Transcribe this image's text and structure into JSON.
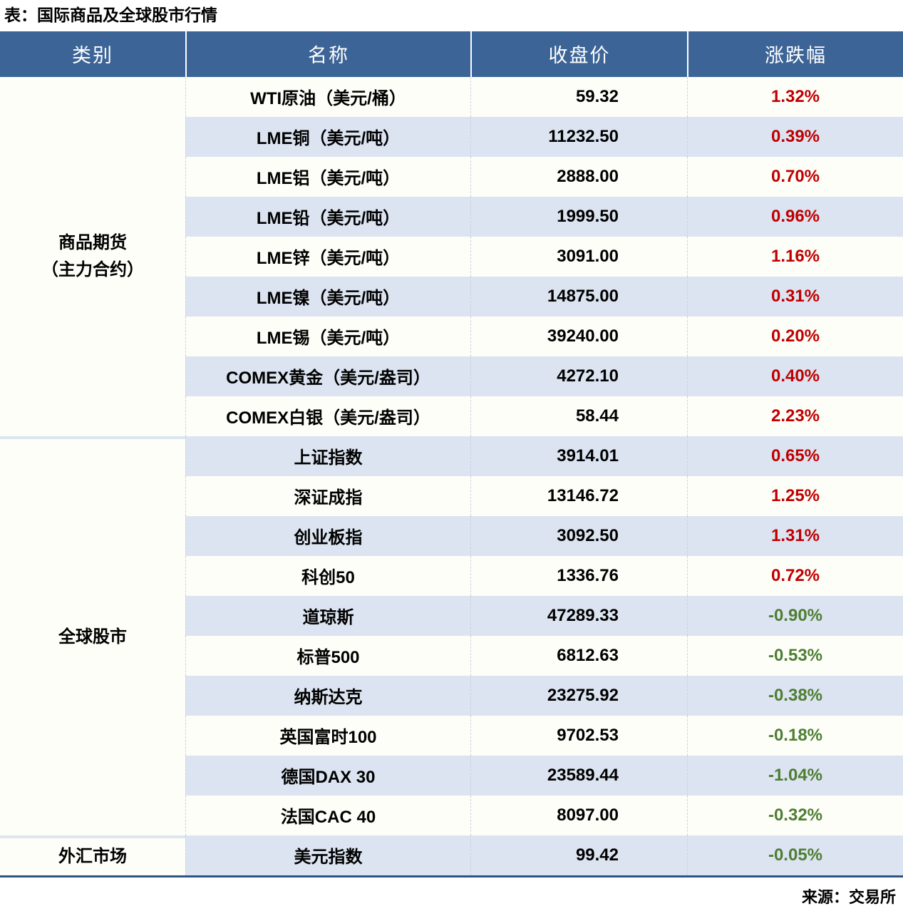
{
  "colors": {
    "header_bg": "#3C6496",
    "header_text": "#FFFFFF",
    "row_stripe": "#DBE4F0",
    "row_plain": "#FEFEF9",
    "up_red": "#C00000",
    "down_green": "#4E7D33",
    "table_bottom_border": "#2C5484"
  },
  "chart_data": {
    "type": "table",
    "title": "表：国际商品及全球股市行情",
    "source": "来源：交易所",
    "columns": [
      "类别",
      "名称",
      "收盘价",
      "涨跌幅"
    ],
    "groups": [
      {
        "category": "商品期货\n（主力合约）",
        "rows": [
          {
            "name": "WTI原油（美元/桶）",
            "close": "59.32",
            "change": "1.32%"
          },
          {
            "name": "LME铜（美元/吨）",
            "close": "11232.50",
            "change": "0.39%"
          },
          {
            "name": "LME铝（美元/吨）",
            "close": "2888.00",
            "change": "0.70%"
          },
          {
            "name": "LME铅（美元/吨）",
            "close": "1999.50",
            "change": "0.96%"
          },
          {
            "name": "LME锌（美元/吨）",
            "close": "3091.00",
            "change": "1.16%"
          },
          {
            "name": "LME镍（美元/吨）",
            "close": "14875.00",
            "change": "0.31%"
          },
          {
            "name": "LME锡（美元/吨）",
            "close": "39240.00",
            "change": "0.20%"
          },
          {
            "name": "COMEX黄金（美元/盎司）",
            "close": "4272.10",
            "change": "0.40%"
          },
          {
            "name": "COMEX白银（美元/盎司）",
            "close": "58.44",
            "change": "2.23%"
          }
        ]
      },
      {
        "category": "全球股市",
        "rows": [
          {
            "name": "上证指数",
            "close": "3914.01",
            "change": "0.65%"
          },
          {
            "name": "深证成指",
            "close": "13146.72",
            "change": "1.25%"
          },
          {
            "name": "创业板指",
            "close": "3092.50",
            "change": "1.31%"
          },
          {
            "name": "科创50",
            "close": "1336.76",
            "change": "0.72%"
          },
          {
            "name": "道琼斯",
            "close": "47289.33",
            "change": "-0.90%"
          },
          {
            "name": "标普500",
            "close": "6812.63",
            "change": "-0.53%"
          },
          {
            "name": "纳斯达克",
            "close": "23275.92",
            "change": "-0.38%"
          },
          {
            "name": "英国富时100",
            "close": "9702.53",
            "change": "-0.18%"
          },
          {
            "name": "德国DAX 30",
            "close": "23589.44",
            "change": "-1.04%"
          },
          {
            "name": "法国CAC 40",
            "close": "8097.00",
            "change": "-0.32%"
          }
        ]
      },
      {
        "category": "外汇市场",
        "rows": [
          {
            "name": "美元指数",
            "close": "99.42",
            "change": "-0.05%"
          }
        ]
      }
    ]
  }
}
